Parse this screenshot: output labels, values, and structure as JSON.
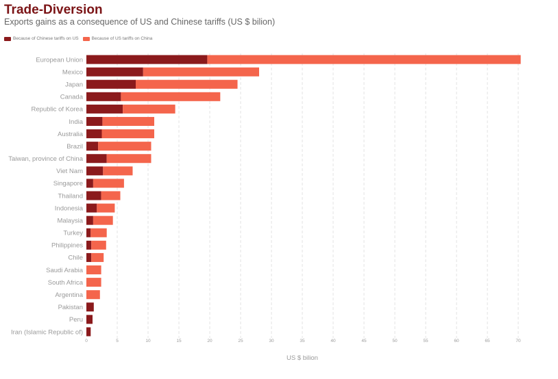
{
  "chart_data": {
    "type": "bar",
    "orientation": "horizontal",
    "stacked": true,
    "title": "Trade-Diversion",
    "subtitle": "Exports gains as a consequence of US and Chinese tariffs (US $ bilion)",
    "xlabel": "US $ bilion",
    "ylabel": "",
    "xlim": [
      0,
      70
    ],
    "xticks": [
      0,
      5,
      10,
      15,
      20,
      25,
      30,
      35,
      40,
      45,
      50,
      55,
      60,
      65,
      70
    ],
    "grid": true,
    "legend_position": "top-left",
    "categories": [
      "European Union",
      "Mexico",
      "Japan",
      "Canada",
      "Republic of Korea",
      "India",
      "Australia",
      "Brazil",
      "Taiwan, province of China",
      "Viet Nam",
      "Singapore",
      "Thailand",
      "Indonesia",
      "Malaysia",
      "Turkey",
      "Philippines",
      "Chile",
      "Saudi Arabia",
      "South Africa",
      "Argentina",
      "Pakistan",
      "Peru",
      "Iran (Islamic Republic of)"
    ],
    "series": [
      {
        "name": "Because of Chinese tariffs on US",
        "color": "#8b1a1c",
        "values": [
          19.6,
          9.2,
          8.0,
          5.6,
          5.9,
          2.6,
          2.5,
          1.9,
          3.3,
          2.7,
          1.1,
          2.4,
          1.7,
          1.1,
          0.7,
          0.8,
          0.8,
          0.0,
          0.0,
          0.0,
          1.2,
          1.0,
          0.7
        ]
      },
      {
        "name": "Because of US tariffs on China",
        "color": "#f4654c",
        "values": [
          50.8,
          18.8,
          16.5,
          16.1,
          8.5,
          8.4,
          8.5,
          8.6,
          7.2,
          4.8,
          5.0,
          3.1,
          2.9,
          3.2,
          2.6,
          2.4,
          2.0,
          2.4,
          2.4,
          2.2,
          0.0,
          0.0,
          0.0
        ]
      }
    ]
  }
}
